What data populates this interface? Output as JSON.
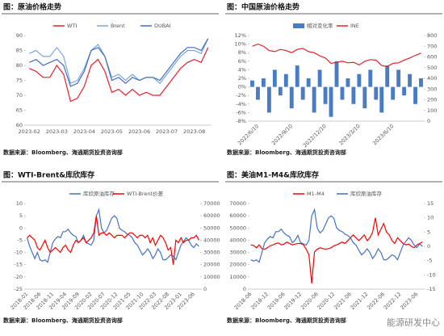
{
  "chart_data": [
    {
      "type": "line",
      "title": "图：原油价格走势",
      "source": "数据来源：Bloomberg、海通期货投资咨询部",
      "categories": [
        "2023-02",
        null,
        null,
        null,
        "2023-03",
        null,
        null,
        null,
        "2023-04",
        null,
        null,
        null,
        "2023-05",
        null,
        null,
        null,
        "2023-06",
        null,
        null,
        null,
        "2023-07",
        null,
        null,
        null,
        "2023-08",
        null,
        null
      ],
      "series": [
        {
          "name": "WTI",
          "color": "#e8202a",
          "values": [
            79,
            78,
            76,
            76,
            80,
            77,
            68,
            69,
            73,
            80,
            82,
            78,
            71,
            72,
            70,
            72,
            70,
            71,
            70,
            70,
            73,
            76,
            79,
            81,
            82,
            81,
            86
          ]
        },
        {
          "name": "Brent",
          "color": "#7aa6dc",
          "values": [
            84,
            85,
            83,
            83,
            86,
            83,
            74,
            75,
            79,
            85,
            87,
            83,
            76,
            77,
            75,
            77,
            75,
            76,
            76,
            74,
            77,
            80,
            83,
            85,
            85,
            84,
            89
          ]
        },
        {
          "name": "DUBAI",
          "color": "#3f6fc0",
          "values": [
            81,
            82,
            80,
            81,
            82,
            80,
            73,
            74,
            78,
            85,
            86,
            83,
            75,
            76,
            74,
            76,
            75,
            76,
            76,
            75,
            78,
            81,
            84,
            86,
            86,
            85,
            89
          ]
        }
      ],
      "ylim": [
        60,
        90
      ],
      "yticks": [
        60,
        65,
        70,
        75,
        80,
        85,
        90
      ]
    },
    {
      "type": "combo",
      "title": "图：中国原油价格走势",
      "source": "数据来源：Bloomberg、海通期货投资咨询部",
      "categories": [
        null,
        "2022/6/10",
        null,
        null,
        null,
        null,
        null,
        "2022/9/10",
        null,
        null,
        null,
        null,
        null,
        "2022/12/10",
        null,
        null,
        null,
        null,
        null,
        "2023/3/10",
        null,
        null,
        null,
        null,
        null,
        "2023/6/10",
        null,
        null,
        null,
        null,
        null
      ],
      "series": [
        {
          "name": "相对变化率",
          "color": "#4a7cc4",
          "type": "bar",
          "values": [
            1.5,
            -3,
            2,
            -6,
            4,
            -2,
            3,
            -5,
            5,
            -3,
            2,
            -6,
            4,
            -4,
            -7,
            6,
            -3,
            2,
            -4,
            3,
            -5,
            4,
            -3,
            -6,
            5,
            -3,
            4,
            -2,
            3,
            -4,
            2
          ]
        },
        {
          "name": "INE",
          "color": "#e8202a",
          "type": "line",
          "axis": "y2",
          "values": [
            700,
            720,
            700,
            660,
            650,
            670,
            660,
            640,
            670,
            680,
            650,
            640,
            610,
            590,
            540,
            550,
            560,
            545,
            550,
            525,
            560,
            575,
            570,
            520,
            510,
            540,
            545,
            570,
            590,
            615,
            635
          ]
        }
      ],
      "ylim": [
        -8,
        12
      ],
      "yticks": [
        {
          "value": -8,
          "label": "-8%"
        },
        {
          "value": -6,
          "label": "-6%"
        },
        {
          "value": -4,
          "label": "-4%"
        },
        {
          "value": -2,
          "label": "-2%"
        },
        {
          "value": 0,
          "label": "0%"
        },
        {
          "value": 2,
          "label": "2%"
        },
        {
          "value": 4,
          "label": "4%"
        },
        {
          "value": 6,
          "label": "6%"
        },
        {
          "value": 8,
          "label": "8%"
        },
        {
          "value": 10,
          "label": "10%"
        },
        {
          "value": 12,
          "label": "12%"
        }
      ],
      "y2lim": [
        0,
        800
      ],
      "y2ticks": [
        0,
        100,
        200,
        300,
        400,
        500,
        600,
        700,
        800
      ]
    },
    {
      "type": "line",
      "title": "图：WTI-Brent&库欣库存",
      "source": "数据来源：Bloomberg、海通期货投资咨询部",
      "categories": [
        "2018-01",
        null,
        null,
        null,
        null,
        "2018-06",
        null,
        null,
        null,
        null,
        "2018-11",
        null,
        null,
        null,
        null,
        "2019-04",
        null,
        null,
        null,
        null,
        "2019-09",
        null,
        null,
        null,
        null,
        "2020-02",
        null,
        null,
        null,
        null,
        "2020-07",
        null,
        null,
        null,
        null,
        "2020-12",
        null,
        null,
        null,
        null,
        "2021-05",
        null,
        null,
        null,
        null,
        "2021-10",
        null,
        null,
        null,
        null,
        "2022-03",
        null,
        null,
        null,
        null,
        "2022-08",
        null,
        null,
        null,
        null,
        "2023-01",
        null,
        null,
        null,
        null,
        "2023-06",
        null,
        null
      ],
      "series": [
        {
          "name": "库欣原油库存",
          "color": "#4472c4",
          "axis": "y2",
          "values": [
            42000,
            35000,
            30000,
            25000,
            30000,
            24000,
            23000,
            24000,
            22000,
            30000,
            38000,
            41000,
            43000,
            42000,
            47000,
            47000,
            49000,
            46000,
            44000,
            43000,
            38000,
            40000,
            44000,
            38000,
            37000,
            36000,
            40000,
            60000,
            65000,
            50000,
            46000,
            48000,
            53000,
            58000,
            60000,
            58000,
            50000,
            48000,
            47000,
            45000,
            44000,
            42000,
            38000,
            36000,
            32000,
            28000,
            30000,
            33000,
            30000,
            25000,
            28000,
            33000,
            30000,
            24000,
            24000,
            26000,
            28000,
            27000,
            24000,
            30000,
            36000,
            39000,
            42000,
            40000,
            36000,
            34000,
            37000,
            35000
          ]
        },
        {
          "name": "WTI-Brent价差",
          "color": "#ff0000",
          "values": [
            -4,
            -3,
            -4,
            -5,
            -8,
            -9,
            -7,
            -5,
            -8,
            -10,
            -9,
            -8,
            -9,
            -10,
            -8,
            -7,
            -9,
            -10,
            -7,
            -5,
            -6,
            -5,
            -4,
            -6,
            -5,
            -4,
            -2,
            5,
            -3,
            -2,
            -2,
            -3,
            -2,
            -3,
            -4,
            -3,
            -3,
            -3,
            -4,
            -3,
            -2,
            -2,
            -3,
            -4,
            -3,
            -3,
            -4,
            -3,
            -6,
            -4,
            -7,
            -5,
            -3,
            -4,
            -6,
            -9,
            -8,
            -15,
            -5,
            -6,
            -4,
            -6,
            -5,
            -5,
            -4,
            -4,
            -3,
            -5
          ]
        }
      ],
      "ylim": [
        -25,
        10
      ],
      "yticks": [
        -25,
        -20,
        -15,
        -10,
        -5,
        0,
        5,
        10
      ],
      "y2lim": [
        0,
        70000
      ],
      "y2ticks": [
        0,
        10000,
        20000,
        30000,
        40000,
        50000,
        60000,
        70000
      ]
    },
    {
      "type": "line",
      "title": "图：美油M1-M4&库欣库存",
      "source": "数据来源：Bloomberg、海通期货投资咨询部",
      "categories": [
        "2018-06",
        null,
        null,
        null,
        null,
        null,
        "2018-12",
        null,
        null,
        null,
        null,
        null,
        "2019-06",
        null,
        null,
        null,
        null,
        null,
        "2019-12",
        null,
        null,
        null,
        null,
        null,
        "2020-06",
        null,
        null,
        null,
        null,
        null,
        "2020-12",
        null,
        null,
        null,
        null,
        null,
        "2021-06",
        null,
        null,
        null,
        null,
        null,
        "2021-12",
        null,
        null,
        null,
        null,
        null,
        "2022-06",
        null,
        null,
        null,
        null,
        null,
        "2022-12",
        null,
        null,
        null,
        null,
        null,
        "2023-06",
        null,
        null
      ],
      "series": [
        {
          "name": "M1-M4",
          "color": "#ff0000",
          "axis": "y2",
          "values": [
            0.5,
            0.3,
            -0.5,
            0.5,
            -0.8,
            -1,
            -0.5,
            0.2,
            0.5,
            1,
            1.2,
            0.5,
            0.8,
            1.5,
            1,
            0.5,
            0.8,
            1,
            1,
            0.5,
            -1,
            -3,
            -13,
            -2,
            -1,
            -0.5,
            -0.8,
            -1,
            -0.8,
            -0.5,
            0.2,
            0.5,
            1,
            1.5,
            1,
            2,
            3,
            4,
            3,
            2,
            3,
            4,
            2,
            3,
            5,
            10,
            4,
            6,
            8,
            5,
            4,
            2,
            1,
            3,
            2,
            1,
            0.5,
            0.8,
            0,
            -0.5,
            0.5,
            1,
            1.5
          ]
        },
        {
          "name": "库欣原油库存",
          "color": "#4472c4",
          "values": [
            24000,
            23000,
            24000,
            22000,
            30000,
            38000,
            41000,
            43000,
            42000,
            47000,
            47000,
            49000,
            46000,
            44000,
            43000,
            38000,
            40000,
            44000,
            38000,
            37000,
            36000,
            40000,
            60000,
            65000,
            50000,
            46000,
            48000,
            53000,
            58000,
            60000,
            58000,
            50000,
            48000,
            47000,
            45000,
            44000,
            42000,
            38000,
            36000,
            32000,
            28000,
            30000,
            33000,
            30000,
            25000,
            28000,
            33000,
            30000,
            24000,
            24000,
            26000,
            28000,
            27000,
            24000,
            30000,
            36000,
            39000,
            42000,
            40000,
            36000,
            34000,
            37000,
            35000
          ]
        }
      ],
      "ylim": [
        0,
        70000
      ],
      "yticks": [
        0,
        10000,
        20000,
        30000,
        40000,
        50000,
        60000,
        70000
      ],
      "y2lim": [
        -15,
        15
      ],
      "y2ticks": [
        -15,
        -10,
        -5,
        0,
        5,
        10,
        15
      ]
    }
  ],
  "watermark": "能源研发中心"
}
